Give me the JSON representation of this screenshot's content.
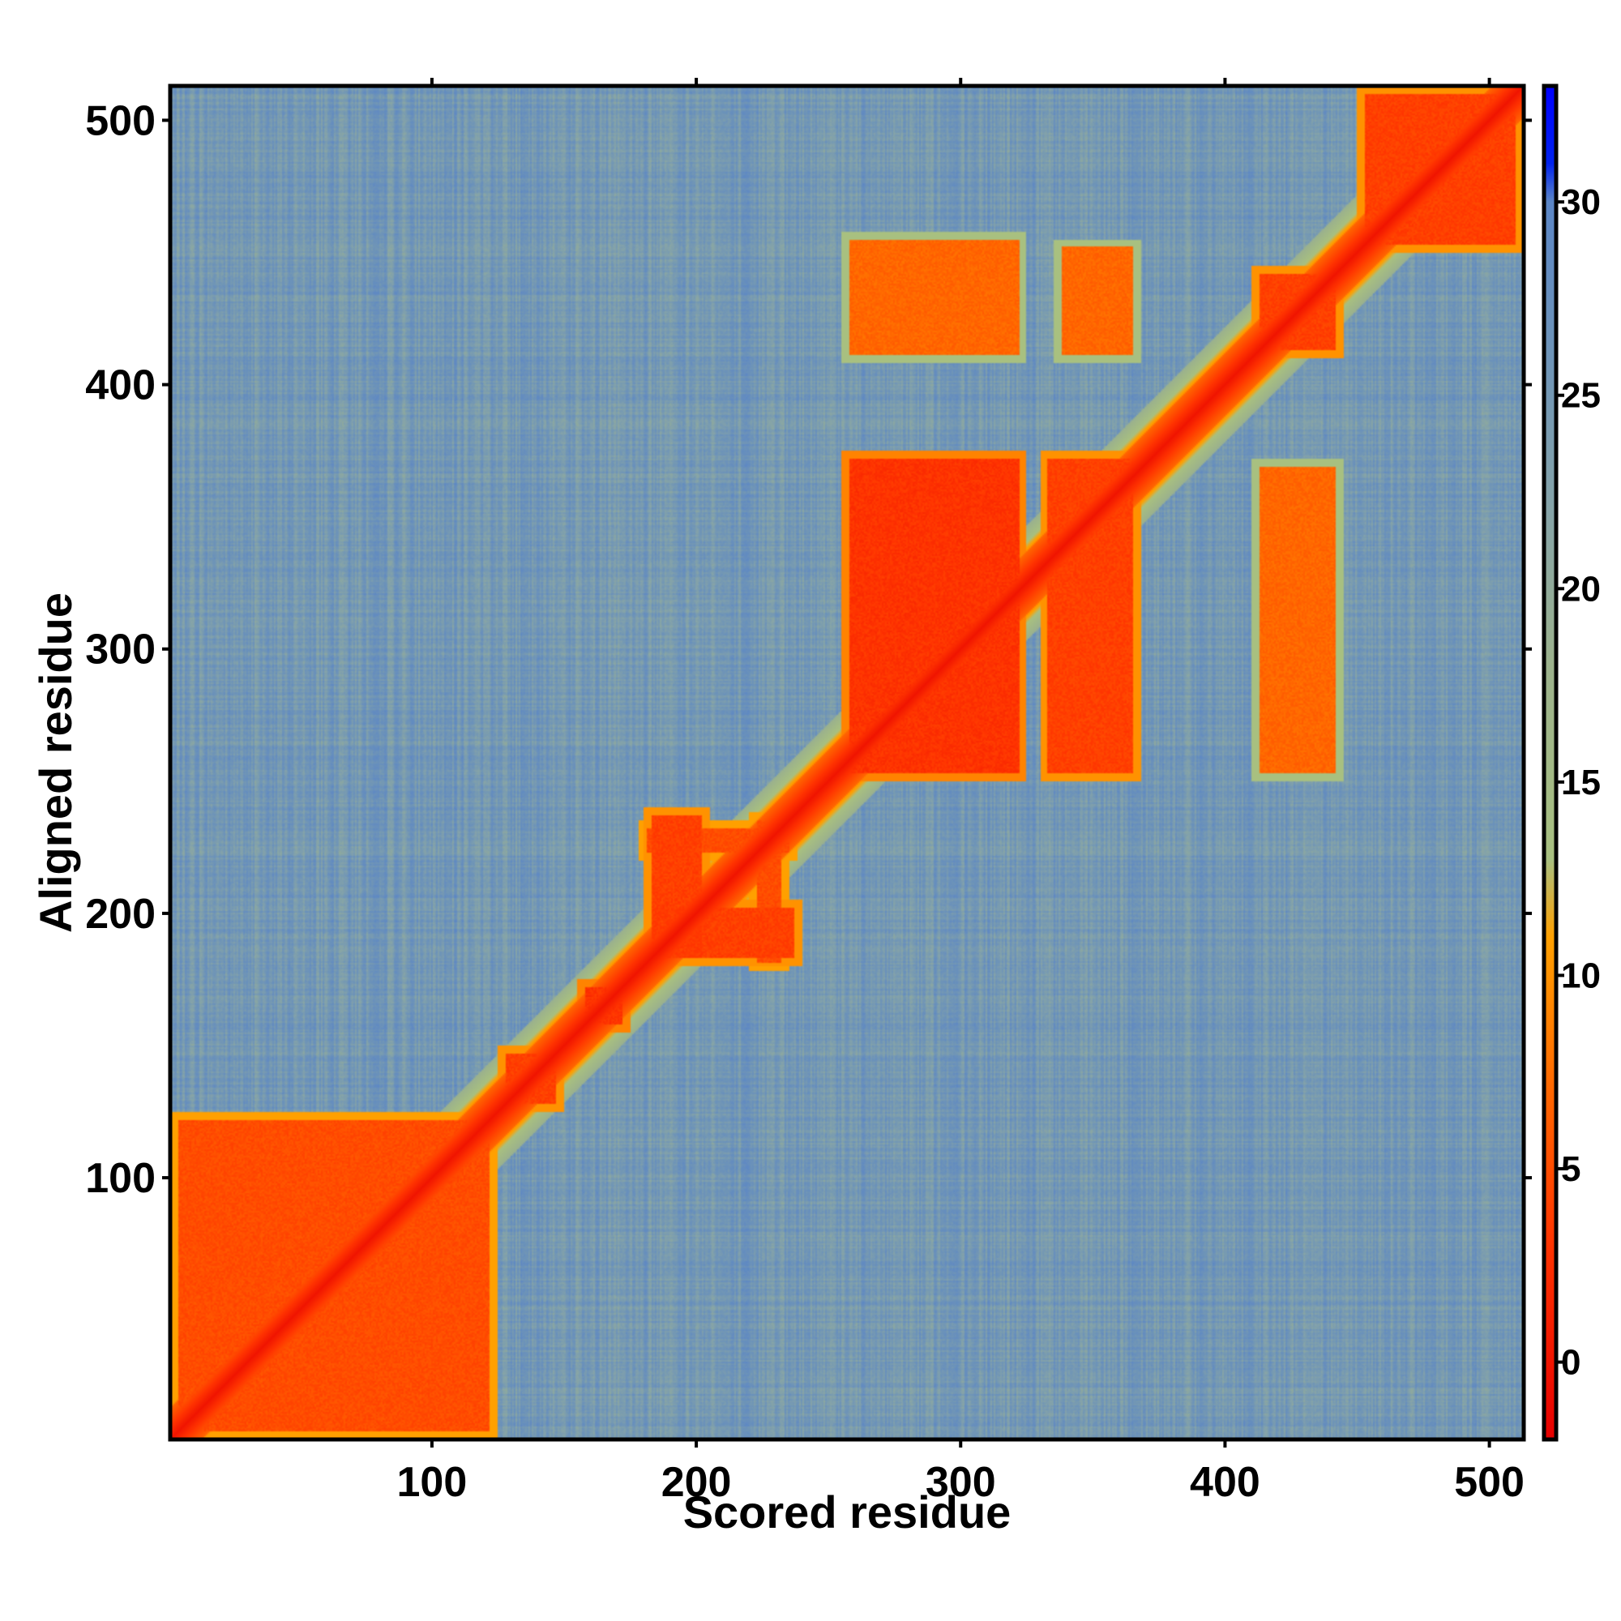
{
  "chart_data": {
    "type": "heatmap",
    "title": "",
    "xlabel": "Scored residue",
    "ylabel": "Aligned residue",
    "xlim": [
      1,
      513
    ],
    "ylim": [
      1,
      513
    ],
    "x_ticks": [
      100,
      200,
      300,
      400,
      500
    ],
    "y_ticks": [
      100,
      200,
      300,
      400,
      500
    ],
    "colorbar": {
      "range": [
        -2,
        33
      ],
      "ticks": [
        0,
        5,
        10,
        15,
        20,
        25,
        30
      ],
      "stops": [
        {
          "value": -2,
          "color": "#e60000"
        },
        {
          "value": 3,
          "color": "#ff3300"
        },
        {
          "value": 7,
          "color": "#ff6600"
        },
        {
          "value": 11,
          "color": "#ffa000"
        },
        {
          "value": 13,
          "color": "#a8c080"
        },
        {
          "value": 18,
          "color": "#9cb28c"
        },
        {
          "value": 22,
          "color": "#86a4a8"
        },
        {
          "value": 26,
          "color": "#6e94b8"
        },
        {
          "value": 30,
          "color": "#5b86c6"
        },
        {
          "value": 31,
          "color": "#0022ee"
        },
        {
          "value": 33,
          "color": "#0000ff"
        }
      ]
    },
    "background_value": 25,
    "diagonal_value": 0,
    "blocks": [
      {
        "x": [
          1,
          125
        ],
        "y": [
          1,
          125
        ],
        "value": 5
      },
      {
        "x": [
          125,
          150
        ],
        "y": [
          125,
          150
        ],
        "value": 4
      },
      {
        "x": [
          155,
          175
        ],
        "y": [
          155,
          175
        ],
        "value": 3
      },
      {
        "x": [
          180,
          205
        ],
        "y": [
          180,
          240
        ],
        "value": 4
      },
      {
        "x": [
          180,
          240
        ],
        "y": [
          180,
          205
        ],
        "value": 4
      },
      {
        "x": [
          220,
          235
        ],
        "y": [
          178,
          238
        ],
        "value": 5
      },
      {
        "x": [
          178,
          238
        ],
        "y": [
          220,
          235
        ],
        "value": 5
      },
      {
        "x": [
          255,
          325
        ],
        "y": [
          250,
          375
        ],
        "value": 3
      },
      {
        "x": [
          330,
          368
        ],
        "y": [
          250,
          375
        ],
        "value": 4
      },
      {
        "x": [
          255,
          325
        ],
        "y": [
          408,
          458
        ],
        "value": 7
      },
      {
        "x": [
          335,
          368
        ],
        "y": [
          408,
          455
        ],
        "value": 7
      },
      {
        "x": [
          410,
          445
        ],
        "y": [
          250,
          372
        ],
        "value": 7
      },
      {
        "x": [
          410,
          445
        ],
        "y": [
          410,
          445
        ],
        "value": 4
      },
      {
        "x": [
          450,
          513
        ],
        "y": [
          450,
          513
        ],
        "value": 4
      }
    ]
  }
}
